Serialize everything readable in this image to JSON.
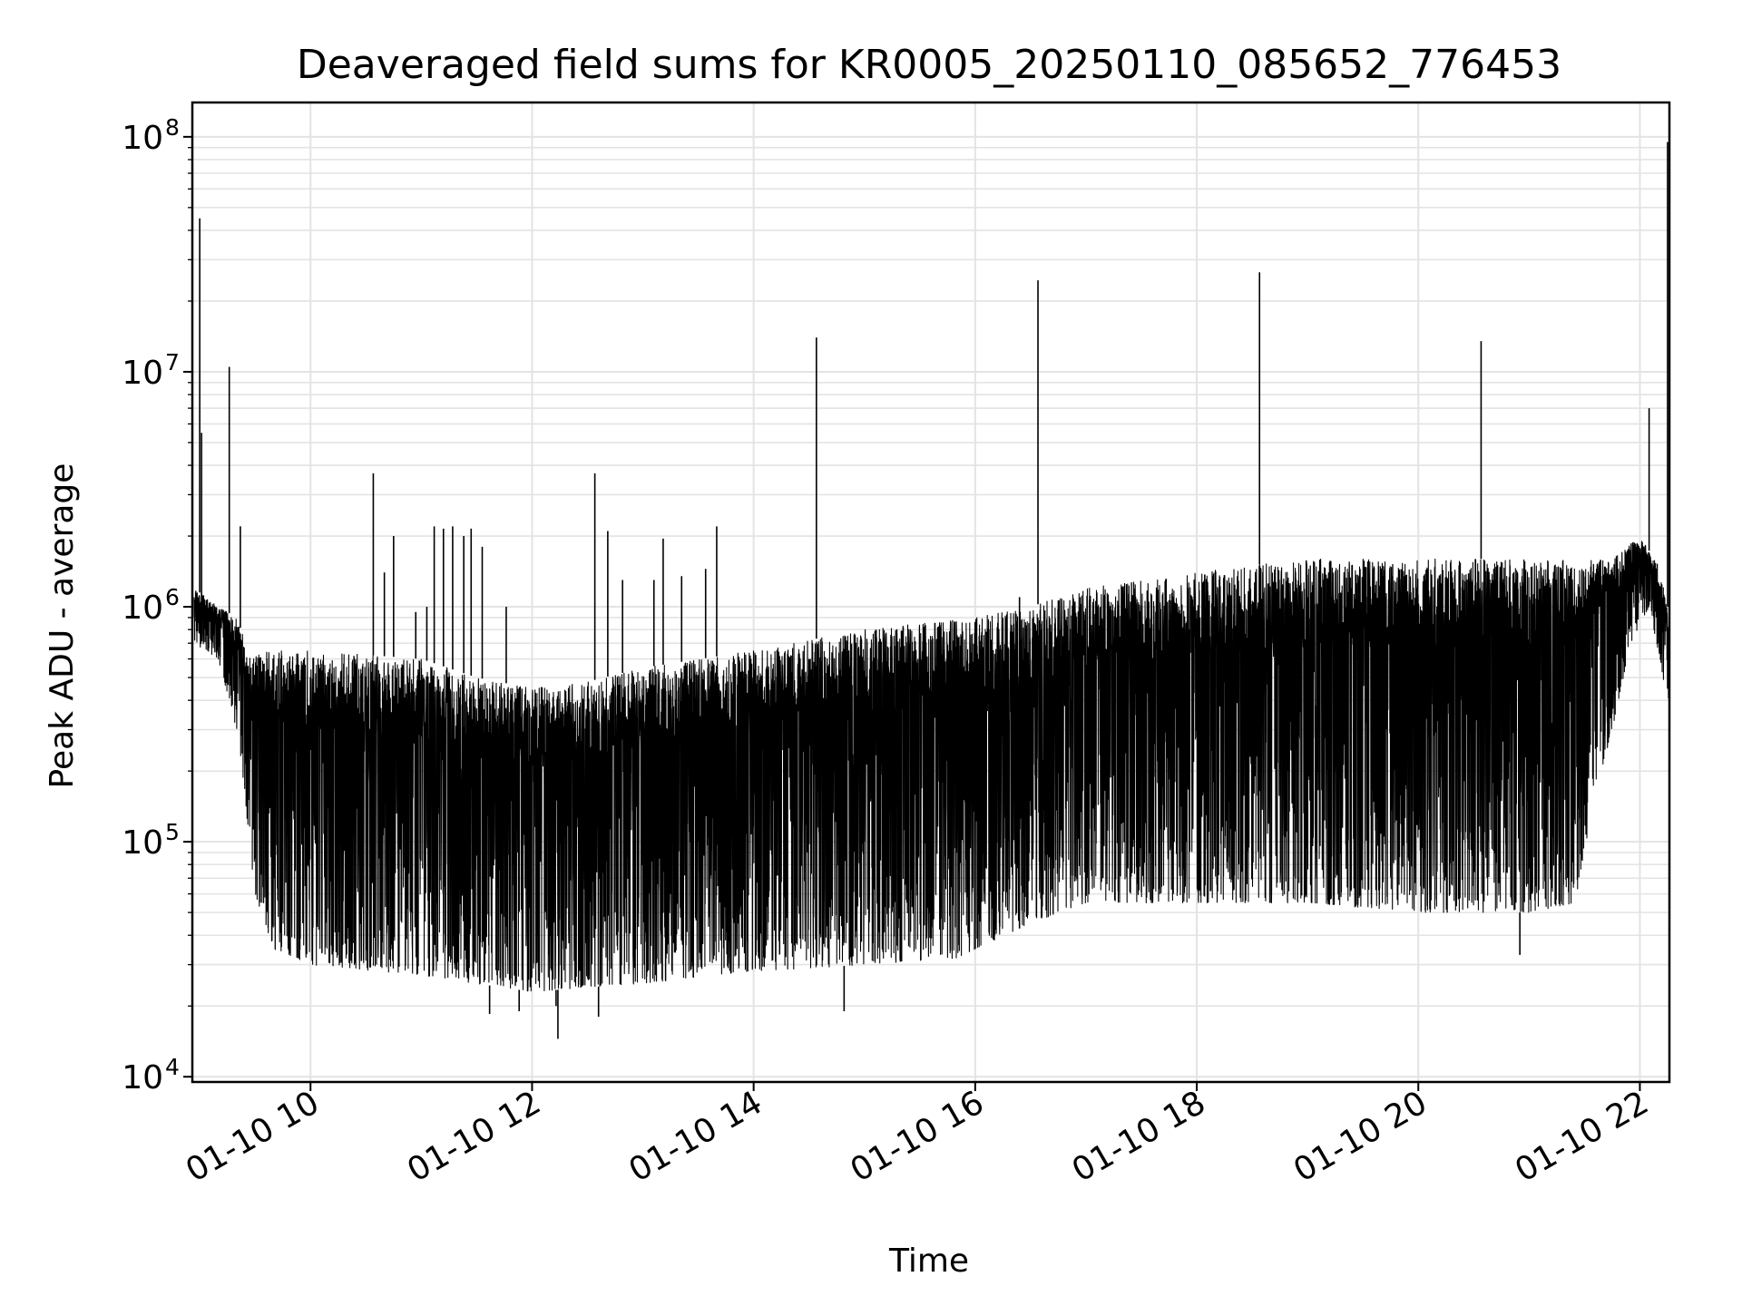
{
  "chart_data": {
    "type": "line",
    "title": "Deaveraged field sums for KR0005_20250110_085652_776453",
    "xlabel": "Time",
    "ylabel": "Peak ADU - average",
    "yscale": "log",
    "ylim": [
      9500,
      140000000
    ],
    "xlim": [
      "2025-01-10 08:56",
      "2025-01-10 22:16"
    ],
    "grid": true,
    "line_color": "#000000",
    "grid_color": "#e3e3e3",
    "x_ticks": [
      {
        "t": "2025-01-10 10:00",
        "label": "01-10 10"
      },
      {
        "t": "2025-01-10 12:00",
        "label": "01-10 12"
      },
      {
        "t": "2025-01-10 14:00",
        "label": "01-10 14"
      },
      {
        "t": "2025-01-10 16:00",
        "label": "01-10 16"
      },
      {
        "t": "2025-01-10 18:00",
        "label": "01-10 18"
      },
      {
        "t": "2025-01-10 20:00",
        "label": "01-10 20"
      },
      {
        "t": "2025-01-10 22:00",
        "label": "01-10 22"
      }
    ],
    "y_ticks": [
      {
        "value": 10000,
        "base": "10",
        "exp": "4"
      },
      {
        "value": 100000,
        "base": "10",
        "exp": "5"
      },
      {
        "value": 1000000,
        "base": "10",
        "exp": "6"
      },
      {
        "value": 10000000,
        "base": "10",
        "exp": "7"
      },
      {
        "value": 100000000,
        "base": "10",
        "exp": "8"
      }
    ],
    "series": [
      {
        "name": "",
        "upper_envelope": [
          {
            "t": "2025-01-10 08:57",
            "y": 1200000
          },
          {
            "t": "2025-01-10 09:10",
            "y": 1000000
          },
          {
            "t": "2025-01-10 09:20",
            "y": 900000
          },
          {
            "t": "2025-01-10 09:28",
            "y": 600000
          },
          {
            "t": "2025-01-10 09:35",
            "y": 650000
          },
          {
            "t": "2025-01-10 10:00",
            "y": 650000
          },
          {
            "t": "2025-01-10 11:00",
            "y": 600000
          },
          {
            "t": "2025-01-10 11:30",
            "y": 500000
          },
          {
            "t": "2025-01-10 12:00",
            "y": 450000
          },
          {
            "t": "2025-01-10 12:30",
            "y": 480000
          },
          {
            "t": "2025-01-10 13:00",
            "y": 550000
          },
          {
            "t": "2025-01-10 14:00",
            "y": 650000
          },
          {
            "t": "2025-01-10 15:00",
            "y": 800000
          },
          {
            "t": "2025-01-10 16:00",
            "y": 900000
          },
          {
            "t": "2025-01-10 16:30",
            "y": 1000000
          },
          {
            "t": "2025-01-10 17:00",
            "y": 1200000
          },
          {
            "t": "2025-01-10 18:00",
            "y": 1400000
          },
          {
            "t": "2025-01-10 19:00",
            "y": 1600000
          },
          {
            "t": "2025-01-10 20:00",
            "y": 1600000
          },
          {
            "t": "2025-01-10 21:00",
            "y": 1600000
          },
          {
            "t": "2025-01-10 21:45",
            "y": 1600000
          },
          {
            "t": "2025-01-10 22:00",
            "y": 2000000
          },
          {
            "t": "2025-01-10 22:10",
            "y": 1500000
          },
          {
            "t": "2025-01-10 22:15",
            "y": 1000000
          }
        ],
        "lower_envelope": [
          {
            "t": "2025-01-10 08:57",
            "y": 700000
          },
          {
            "t": "2025-01-10 09:10",
            "y": 600000
          },
          {
            "t": "2025-01-10 09:20",
            "y": 300000
          },
          {
            "t": "2025-01-10 09:30",
            "y": 60000
          },
          {
            "t": "2025-01-10 09:40",
            "y": 35000
          },
          {
            "t": "2025-01-10 10:00",
            "y": 30000
          },
          {
            "t": "2025-01-10 11:00",
            "y": 27000
          },
          {
            "t": "2025-01-10 12:00",
            "y": 23000
          },
          {
            "t": "2025-01-10 13:00",
            "y": 25000
          },
          {
            "t": "2025-01-10 14:00",
            "y": 28000
          },
          {
            "t": "2025-01-10 15:00",
            "y": 30000
          },
          {
            "t": "2025-01-10 15:50",
            "y": 32000
          },
          {
            "t": "2025-01-10 16:30",
            "y": 45000
          },
          {
            "t": "2025-01-10 17:00",
            "y": 55000
          },
          {
            "t": "2025-01-10 18:00",
            "y": 55000
          },
          {
            "t": "2025-01-10 19:00",
            "y": 55000
          },
          {
            "t": "2025-01-10 20:00",
            "y": 50000
          },
          {
            "t": "2025-01-10 21:00",
            "y": 50000
          },
          {
            "t": "2025-01-10 21:25",
            "y": 55000
          },
          {
            "t": "2025-01-10 21:35",
            "y": 150000
          },
          {
            "t": "2025-01-10 21:45",
            "y": 300000
          },
          {
            "t": "2025-01-10 21:55",
            "y": 700000
          },
          {
            "t": "2025-01-10 22:05",
            "y": 1000000
          },
          {
            "t": "2025-01-10 22:15",
            "y": 400000
          }
        ],
        "spikes": [
          {
            "t": "2025-01-10 09:00",
            "y": 45000000
          },
          {
            "t": "2025-01-10 09:01",
            "y": 5500000
          },
          {
            "t": "2025-01-10 09:16",
            "y": 10500000
          },
          {
            "t": "2025-01-10 09:22",
            "y": 2200000
          },
          {
            "t": "2025-01-10 10:34",
            "y": 3700000
          },
          {
            "t": "2025-01-10 10:40",
            "y": 1400000
          },
          {
            "t": "2025-01-10 10:45",
            "y": 2000000
          },
          {
            "t": "2025-01-10 10:57",
            "y": 950000
          },
          {
            "t": "2025-01-10 11:03",
            "y": 1000000
          },
          {
            "t": "2025-01-10 11:07",
            "y": 2200000
          },
          {
            "t": "2025-01-10 11:12",
            "y": 2150000
          },
          {
            "t": "2025-01-10 11:17",
            "y": 2200000
          },
          {
            "t": "2025-01-10 11:23",
            "y": 2000000
          },
          {
            "t": "2025-01-10 11:27",
            "y": 2150000
          },
          {
            "t": "2025-01-10 11:33",
            "y": 1800000
          },
          {
            "t": "2025-01-10 11:46",
            "y": 1000000
          },
          {
            "t": "2025-01-10 12:34",
            "y": 3700000
          },
          {
            "t": "2025-01-10 12:41",
            "y": 2100000
          },
          {
            "t": "2025-01-10 12:49",
            "y": 1300000
          },
          {
            "t": "2025-01-10 13:06",
            "y": 1300000
          },
          {
            "t": "2025-01-10 13:11",
            "y": 1950000
          },
          {
            "t": "2025-01-10 13:21",
            "y": 1350000
          },
          {
            "t": "2025-01-10 13:34",
            "y": 1450000
          },
          {
            "t": "2025-01-10 13:40",
            "y": 2200000
          },
          {
            "t": "2025-01-10 14:34",
            "y": 14000000
          },
          {
            "t": "2025-01-10 16:34",
            "y": 24500000
          },
          {
            "t": "2025-01-10 18:34",
            "y": 26500000
          },
          {
            "t": "2025-01-10 20:34",
            "y": 13500000
          },
          {
            "t": "2025-01-10 22:05",
            "y": 7000000
          },
          {
            "t": "2025-01-10 22:15",
            "y": 95000000
          }
        ],
        "dips": [
          {
            "t": "2025-01-10 11:37",
            "y": 18500.0
          },
          {
            "t": "2025-01-10 11:53",
            "y": 19000
          },
          {
            "t": "2025-01-10 12:13",
            "y": 20000
          },
          {
            "t": "2025-01-10 12:14",
            "y": 14500
          },
          {
            "t": "2025-01-10 12:36",
            "y": 18000
          },
          {
            "t": "2025-01-10 14:49",
            "y": 19000
          },
          {
            "t": "2025-01-10 16:24",
            "y": 1100000
          },
          {
            "t": "2025-01-10 20:55",
            "y": 33000
          }
        ]
      }
    ]
  }
}
